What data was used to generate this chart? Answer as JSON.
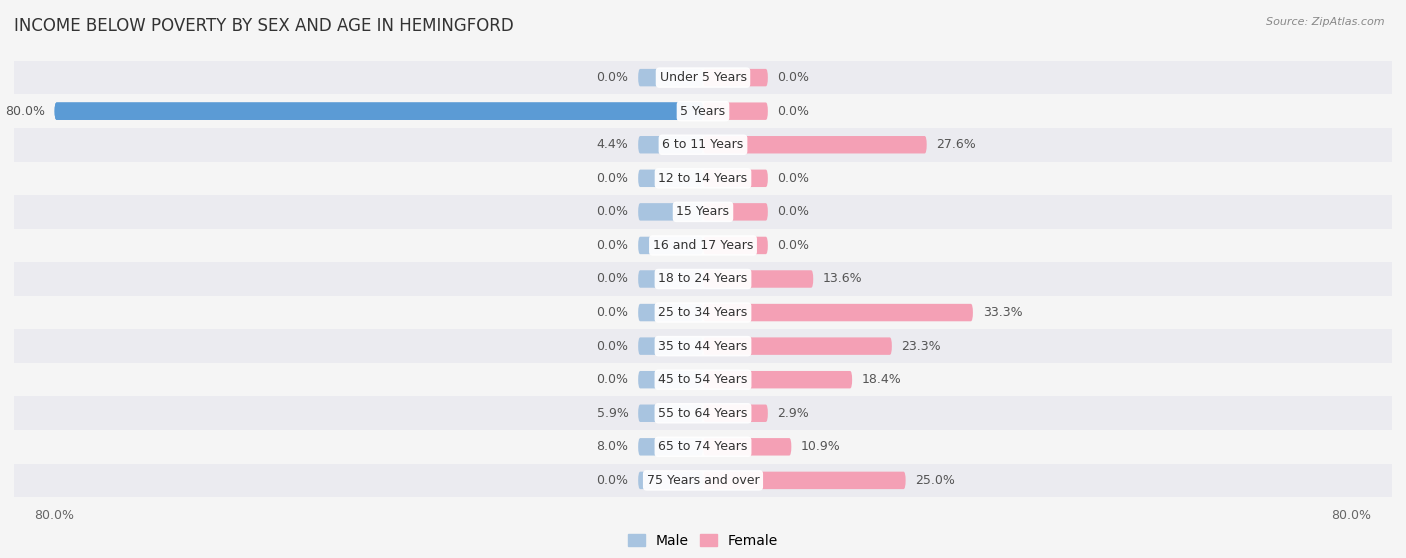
{
  "title": "INCOME BELOW POVERTY BY SEX AND AGE IN HEMINGFORD",
  "source": "Source: ZipAtlas.com",
  "categories": [
    "Under 5 Years",
    "5 Years",
    "6 to 11 Years",
    "12 to 14 Years",
    "15 Years",
    "16 and 17 Years",
    "18 to 24 Years",
    "25 to 34 Years",
    "35 to 44 Years",
    "45 to 54 Years",
    "55 to 64 Years",
    "65 to 74 Years",
    "75 Years and over"
  ],
  "male": [
    0.0,
    80.0,
    4.4,
    0.0,
    0.0,
    0.0,
    0.0,
    0.0,
    0.0,
    0.0,
    5.9,
    8.0,
    0.0
  ],
  "female": [
    0.0,
    0.0,
    27.6,
    0.0,
    0.0,
    0.0,
    13.6,
    33.3,
    23.3,
    18.4,
    2.9,
    10.9,
    25.0
  ],
  "male_color": "#a8c4e0",
  "female_color": "#f4a0b5",
  "male_color_bright": "#5b9bd5",
  "female_color_bright": "#e05578",
  "row_bg_light": "#f0f0f5",
  "row_bg_white": "#e8e8ee",
  "max_val": 80.0,
  "bar_height": 0.52,
  "min_bar": 8.0,
  "title_fontsize": 12,
  "label_fontsize": 9,
  "cat_fontsize": 9,
  "tick_fontsize": 9,
  "legend_fontsize": 10
}
